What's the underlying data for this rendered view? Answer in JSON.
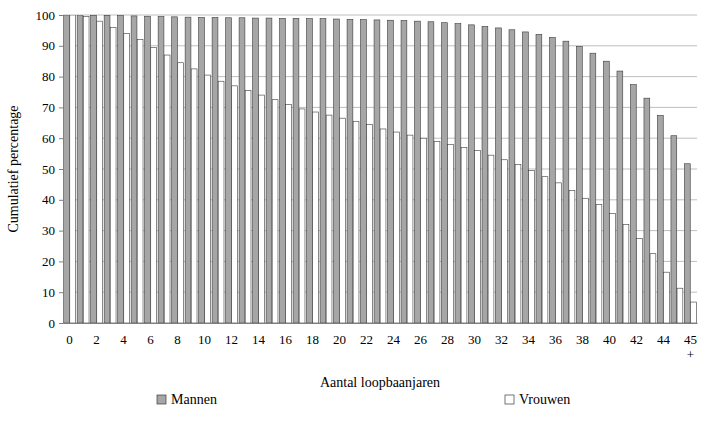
{
  "chart_data": {
    "type": "bar",
    "x_label": "Aantal loopbaanjaren",
    "y_label": "Cumulatief percentage",
    "categories": [
      "0",
      null,
      "2",
      null,
      "4",
      null,
      "6",
      null,
      "8",
      null,
      "10",
      null,
      "12",
      null,
      "14",
      null,
      "16",
      null,
      "18",
      null,
      "20",
      null,
      "22",
      null,
      "24",
      null,
      "26",
      null,
      "28",
      null,
      "30",
      null,
      "32",
      null,
      "34",
      null,
      "36",
      null,
      "38",
      null,
      "40",
      null,
      "42",
      null,
      "44",
      null,
      "45+"
    ],
    "series": [
      {
        "name": "Mannen",
        "color": "#a6a6a6",
        "values": [
          100,
          100,
          99.9,
          99.9,
          99.8,
          99.7,
          99.6,
          99.5,
          99.4,
          99.3,
          99.2,
          99.2,
          99.1,
          99.1,
          99,
          99,
          98.9,
          98.9,
          98.8,
          98.8,
          98.7,
          98.6,
          98.5,
          98.4,
          98.3,
          98.2,
          98,
          97.8,
          97.5,
          97.2,
          96.8,
          96.3,
          95.8,
          95.2,
          94.5,
          93.7,
          92.7,
          91.5,
          89.8,
          87.6,
          85,
          81.8,
          77.4,
          73,
          67.4,
          60.8,
          51.7
        ]
      },
      {
        "name": "Vrouwen",
        "color": "#ffffff",
        "values": [
          100,
          99.5,
          98,
          96,
          94,
          92,
          89.5,
          87,
          84.5,
          82.5,
          80.5,
          78.5,
          77,
          75.5,
          74,
          72.5,
          71,
          69.5,
          68.5,
          67.5,
          66.5,
          65.5,
          64.5,
          63,
          62,
          61,
          60,
          59,
          58,
          57,
          56,
          54.5,
          53,
          51.5,
          49.5,
          47.5,
          45.5,
          43,
          40.5,
          38.5,
          35.5,
          32,
          27.5,
          22.5,
          16.5,
          11.3,
          6.8
        ]
      }
    ],
    "ylim": [
      0,
      100
    ],
    "yticks": [
      0,
      10,
      20,
      30,
      40,
      50,
      60,
      70,
      80,
      90,
      100
    ],
    "grid": true,
    "legend": "bottom"
  }
}
